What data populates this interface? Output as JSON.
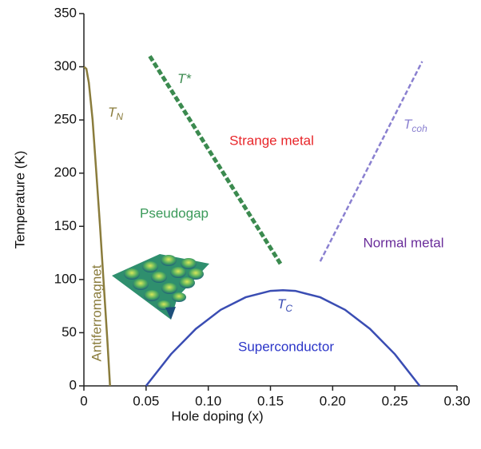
{
  "chart_data": {
    "type": "line",
    "xlabel": "Hole doping (x)",
    "ylabel": "Temperature (K)",
    "xlim": [
      0,
      0.3
    ],
    "ylim": [
      0,
      350
    ],
    "xticks": [
      0,
      0.05,
      {
        "value": 0.1,
        "label": "0.10"
      },
      0.15,
      {
        "value": 0.2,
        "label": "0.20"
      },
      0.25,
      {
        "value": 0.3,
        "label": "0.30"
      }
    ],
    "yticks": [
      0,
      50,
      100,
      150,
      200,
      250,
      300,
      350
    ],
    "series": [
      {
        "name": "T",
        "sub": "N",
        "color": "#8a7c3c",
        "dashed": false,
        "x": [
          0,
          0.002,
          0.004,
          0.007,
          0.01,
          0.013,
          0.016,
          0.019,
          0.021
        ],
        "values": [
          300,
          298,
          285,
          250,
          200,
          150,
          95,
          40,
          0
        ]
      },
      {
        "name": "T*",
        "color": "#3b8a4f",
        "dashed": true,
        "x": [
          0.053,
          0.159
        ],
        "values": [
          310,
          113
        ]
      },
      {
        "name": "T",
        "sub": "coh",
        "color": "#8a80d0",
        "dashed": true,
        "x": [
          0.19,
          0.272
        ],
        "values": [
          117,
          305
        ]
      },
      {
        "name": "T",
        "sub": "C",
        "color": "#3a4db3",
        "dashed": false,
        "x": [
          0.05,
          0.07,
          0.09,
          0.11,
          0.13,
          0.15,
          0.16,
          0.17,
          0.19,
          0.21,
          0.23,
          0.25,
          0.27
        ],
        "values": [
          0,
          29.8,
          53.6,
          71.5,
          83.3,
          89.3,
          90,
          89.3,
          83.3,
          71.5,
          53.6,
          29.8,
          0
        ]
      }
    ],
    "annotations": [
      {
        "text": "Pseudogap",
        "color": "#3b9a5a"
      },
      {
        "text": "Strange metal",
        "color": "#e8262a"
      },
      {
        "text": "Normal metal",
        "color": "#6a2d9a"
      },
      {
        "text": "Superconductor",
        "color": "#2b35c8"
      },
      {
        "text": "Antiferromagnet",
        "color": "#8a7c3c"
      }
    ]
  }
}
